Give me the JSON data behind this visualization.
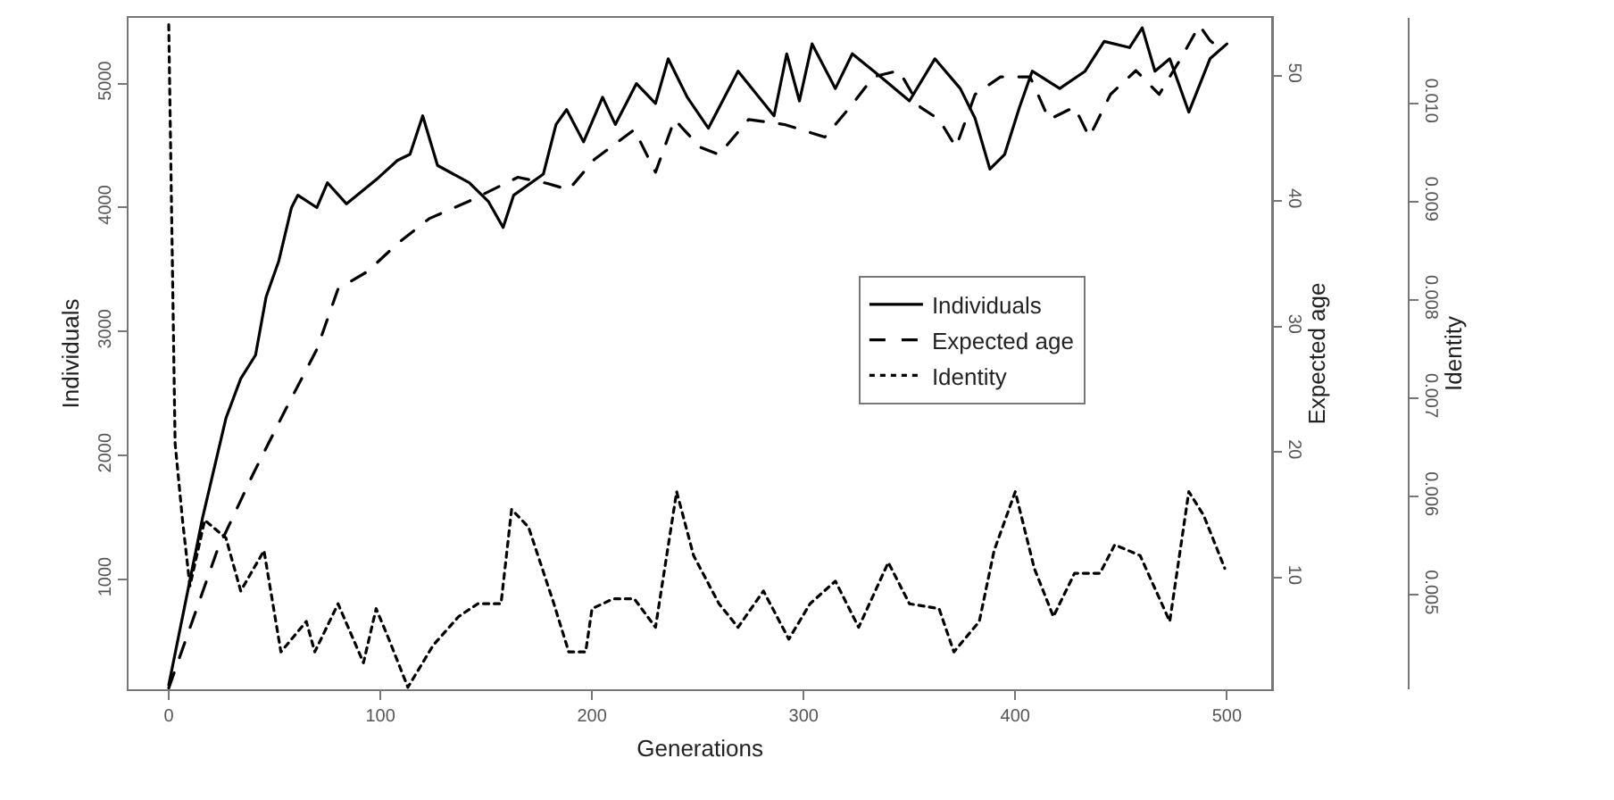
{
  "chart_data": {
    "type": "line",
    "xlabel": "Generations",
    "ylabel": "Individuals",
    "y2label": "Expected age",
    "y3label": "Identity",
    "xlim": [
      -19,
      521
    ],
    "xticks": [
      0,
      100,
      200,
      300,
      400,
      500
    ],
    "ylim": [
      115,
      5530
    ],
    "yticks": [
      1000,
      2000,
      3000,
      4000,
      5000
    ],
    "y2lim": [
      1.1,
      54.6
    ],
    "y2ticks": [
      10,
      20,
      30,
      40,
      50
    ],
    "y3lim": [
      0.00404,
      0.01087
    ],
    "y3ticks": [
      {
        "value": 0.005,
        "label": "0.005"
      },
      {
        "value": 0.006,
        "label": "0.006"
      },
      {
        "value": 0.007,
        "label": "0.007"
      },
      {
        "value": 0.008,
        "label": "0.008"
      },
      {
        "value": 0.009,
        "label": "0.009"
      },
      {
        "value": 0.01,
        "label": "0.010"
      }
    ],
    "grid": false,
    "legend": "center",
    "marker": "none",
    "series": [
      {
        "name": "Individuals",
        "color": "#000000",
        "line_style": "solid",
        "axis": "y",
        "x": [
          0,
          16,
          27,
          34,
          41,
          46,
          52,
          58,
          61,
          70,
          75,
          84,
          99,
          108,
          114,
          120,
          127,
          142,
          151,
          158,
          163,
          177,
          183,
          188,
          196,
          205,
          211,
          221,
          230,
          236,
          245,
          255,
          269,
          286,
          292,
          298,
          304,
          315,
          323,
          336,
          350,
          362,
          374,
          381,
          388,
          395,
          402,
          408,
          421,
          433,
          442,
          454,
          460,
          466,
          473,
          482,
          492,
          500
        ],
        "values": [
          150,
          1500,
          2300,
          2620,
          2810,
          3280,
          3570,
          4000,
          4100,
          4000,
          4200,
          4030,
          4240,
          4380,
          4430,
          4740,
          4340,
          4200,
          4050,
          3840,
          4100,
          4270,
          4670,
          4790,
          4530,
          4890,
          4670,
          5000,
          4840,
          5200,
          4890,
          4640,
          5100,
          4740,
          5240,
          4860,
          5320,
          4960,
          5240,
          5060,
          4860,
          5200,
          4960,
          4720,
          4310,
          4430,
          4810,
          5100,
          4960,
          5100,
          5340,
          5290,
          5450,
          5100,
          5200,
          4770,
          5200,
          5320
        ]
      },
      {
        "name": "Expected age",
        "color": "#000000",
        "line_style": "dashed",
        "axis": "y2",
        "x": [
          0,
          23,
          40,
          54,
          70,
          80,
          94,
          108,
          123,
          142,
          165,
          179,
          189,
          201,
          220,
          230,
          239,
          251,
          260,
          274,
          291,
          310,
          322,
          333,
          345,
          355,
          364,
          372,
          381,
          393,
          407,
          416,
          428,
          435,
          445,
          457,
          468,
          478,
          487,
          492,
          499
        ],
        "values": [
          1.2,
          12.2,
          18.3,
          23.0,
          28.2,
          33.0,
          34.4,
          36.6,
          38.6,
          40.0,
          41.9,
          41.4,
          40.9,
          43.3,
          45.7,
          42.3,
          46.5,
          44.3,
          43.7,
          46.5,
          46.1,
          45.1,
          47.5,
          49.9,
          50.4,
          47.5,
          46.5,
          44.3,
          48.5,
          49.9,
          49.9,
          46.5,
          47.5,
          45.1,
          48.5,
          50.4,
          48.5,
          51.3,
          54.0,
          52.8,
          51.8
        ]
      },
      {
        "name": "Identity",
        "color": "#000000",
        "line_style": "dotted",
        "axis": "y3",
        "x": [
          0,
          3,
          6.5,
          10,
          17,
          27,
          34,
          45,
          53,
          65,
          69,
          80,
          92,
          98,
          104,
          113,
          125,
          137,
          146,
          157,
          162,
          170,
          182,
          189,
          197,
          200,
          210,
          220,
          230,
          240,
          248,
          260,
          269,
          281,
          293,
          303,
          315,
          326,
          340,
          350,
          364,
          371,
          383,
          390,
          400,
          409,
          418,
          428,
          440,
          447,
          459,
          473,
          482,
          489,
          499
        ],
        "values": [
          0.0108,
          0.00654,
          0.00576,
          0.00509,
          0.00576,
          0.00558,
          0.00504,
          0.00545,
          0.00442,
          0.00473,
          0.00442,
          0.00491,
          0.00431,
          0.00486,
          0.00455,
          0.00406,
          0.00449,
          0.00478,
          0.00491,
          0.00491,
          0.00587,
          0.00569,
          0.00491,
          0.00442,
          0.00442,
          0.00486,
          0.00496,
          0.00496,
          0.00467,
          0.00605,
          0.0054,
          0.00491,
          0.00467,
          0.00504,
          0.00455,
          0.00491,
          0.00514,
          0.00467,
          0.00533,
          0.00491,
          0.00486,
          0.00442,
          0.00473,
          0.00545,
          0.00605,
          0.00527,
          0.00478,
          0.00522,
          0.00522,
          0.00551,
          0.0054,
          0.00473,
          0.00605,
          0.00581,
          0.00527
        ]
      }
    ]
  }
}
